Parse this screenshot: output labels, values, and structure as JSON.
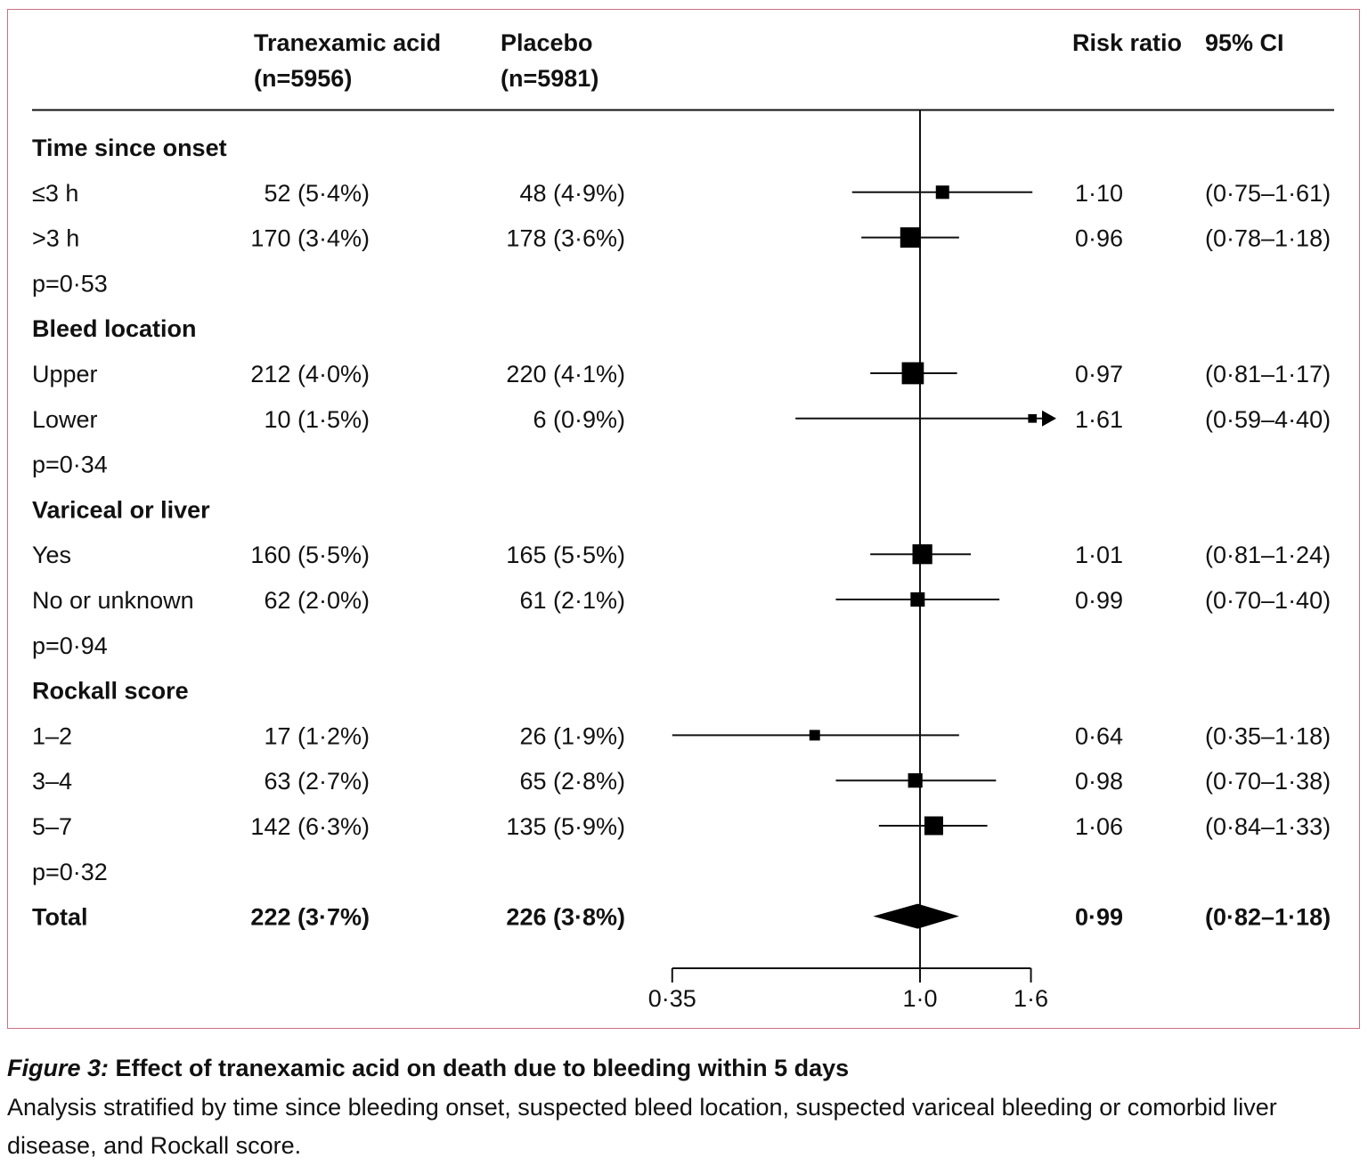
{
  "chart_data": {
    "type": "forest",
    "columns": {
      "group": "",
      "treatment": [
        "Tranexamic acid",
        "(n=5956)"
      ],
      "placebo": [
        "Placebo",
        "(n=5981)"
      ],
      "rr": "Risk ratio",
      "ci": "95% CI"
    },
    "x_scale": "log",
    "xlim": [
      0.35,
      1.6
    ],
    "x_ticks": [
      {
        "value": 0.35,
        "label": "0·35"
      },
      {
        "value": 1.0,
        "label": "1·0"
      },
      {
        "value": 1.6,
        "label": "1·6"
      }
    ],
    "reference_line": 1.0,
    "rows": [
      {
        "kind": "header",
        "label": "Time since onset"
      },
      {
        "kind": "data",
        "label": "≤3 h",
        "treatment": "52 (5·4%)",
        "placebo": "48 (4·9%)",
        "rr_text": "1·10",
        "ci_text": "(0·75–1·61)",
        "rr": 1.1,
        "lo": 0.75,
        "hi": 1.61,
        "events": 100
      },
      {
        "kind": "data",
        "label": ">3 h",
        "treatment": "170 (3·4%)",
        "placebo": "178 (3·6%)",
        "rr_text": "0·96",
        "ci_text": "(0·78–1·18)",
        "rr": 0.96,
        "lo": 0.78,
        "hi": 1.18,
        "events": 348
      },
      {
        "kind": "p",
        "label": "p=0·53"
      },
      {
        "kind": "header",
        "label": "Bleed location"
      },
      {
        "kind": "data",
        "label": "Upper",
        "treatment": "212 (4·0%)",
        "placebo": "220 (4·1%)",
        "rr_text": "0·97",
        "ci_text": "(0·81–1·17)",
        "rr": 0.97,
        "lo": 0.81,
        "hi": 1.17,
        "events": 432
      },
      {
        "kind": "data",
        "label": "Lower",
        "treatment": "10 (1·5%)",
        "placebo": "6 (0·9%)",
        "rr_text": "1·61",
        "ci_text": "(0·59–4·40)",
        "rr": 1.61,
        "lo": 0.59,
        "hi": 4.4,
        "events": 16,
        "truncated": true
      },
      {
        "kind": "p",
        "label": "p=0·34"
      },
      {
        "kind": "header",
        "label": "Variceal or liver"
      },
      {
        "kind": "data",
        "label": "Yes",
        "treatment": "160 (5·5%)",
        "placebo": "165 (5·5%)",
        "rr_text": "1·01",
        "ci_text": "(0·81–1·24)",
        "rr": 1.01,
        "lo": 0.81,
        "hi": 1.24,
        "events": 325
      },
      {
        "kind": "data",
        "label": "No or unknown",
        "treatment": "62 (2·0%)",
        "placebo": "61 (2·1%)",
        "rr_text": "0·99",
        "ci_text": "(0·70–1·40)",
        "rr": 0.99,
        "lo": 0.7,
        "hi": 1.4,
        "events": 123
      },
      {
        "kind": "p",
        "label": "p=0·94"
      },
      {
        "kind": "header",
        "label": "Rockall score"
      },
      {
        "kind": "data",
        "label": "1–2",
        "treatment": "17 (1·2%)",
        "placebo": "26 (1·9%)",
        "rr_text": "0·64",
        "ci_text": "(0·35–1·18)",
        "rr": 0.64,
        "lo": 0.35,
        "hi": 1.18,
        "events": 43
      },
      {
        "kind": "data",
        "label": "3–4",
        "treatment": "63 (2·7%)",
        "placebo": "65 (2·8%)",
        "rr_text": "0·98",
        "ci_text": "(0·70–1·38)",
        "rr": 0.98,
        "lo": 0.7,
        "hi": 1.38,
        "events": 128
      },
      {
        "kind": "data",
        "label": "5–7",
        "treatment": "142 (6·3%)",
        "placebo": "135 (5·9%)",
        "rr_text": "1·06",
        "ci_text": "(0·84–1·33)",
        "rr": 1.06,
        "lo": 0.84,
        "hi": 1.33,
        "events": 277
      },
      {
        "kind": "p",
        "label": "p=0·32"
      },
      {
        "kind": "total",
        "label": "Total",
        "treatment": "222 (3·7%)",
        "placebo": "226 (3·8%)",
        "rr_text": "0·99",
        "ci_text": "(0·82–1·18)",
        "rr": 0.99,
        "lo": 0.82,
        "hi": 1.18
      }
    ]
  },
  "caption": {
    "figure_label": "Figure 3:",
    "title": " Effect of tranexamic acid on death due to bleeding within 5 days",
    "text": "Analysis stratified by time since bleeding onset, suspected bleed location, suspected variceal bleeding or comorbid liver disease, and Rockall score."
  },
  "colors": {
    "frame": "#c87383",
    "ink": "#111111"
  }
}
